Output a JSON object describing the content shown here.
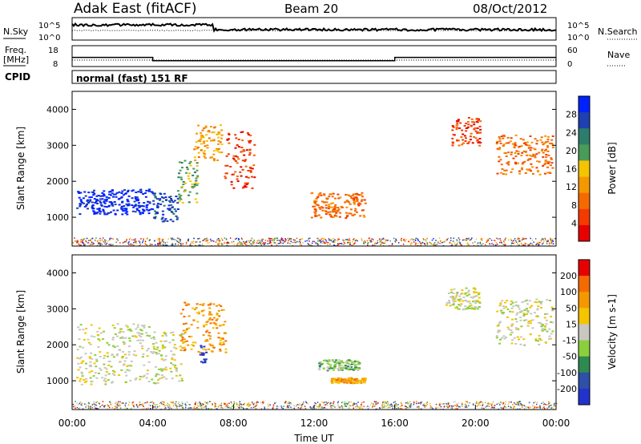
{
  "header": {
    "station": "Adak East (fitACF)",
    "beam": "Beam 20",
    "date": "08/Oct/2012"
  },
  "panel_labels": {
    "nsky": "N.Sky",
    "nsearch": "N.Search",
    "freq": "Freq.",
    "freq_unit": "[MHz]",
    "nave": "Nave",
    "cpid": "CPID",
    "cpid_value": "normal (fast) 151 RF"
  },
  "colors": {
    "power_scale": [
      "#0022ff",
      "#1e40b0",
      "#2d7d6a",
      "#4a9a5a",
      "#f5c400",
      "#f59800",
      "#f56a00",
      "#f53a00",
      "#e80000"
    ],
    "velocity_scale": [
      "#2233cc",
      "#2f4fa8",
      "#2f8a4f",
      "#8ccf3c",
      "#c8c8c0",
      "#f5c400",
      "#f59800",
      "#f56a00",
      "#e80000"
    ]
  },
  "chart_data": [
    {
      "type": "line",
      "panel": "noise",
      "left_ylabel": "N.Sky",
      "right_ylabel": "N.Search",
      "left_ticks": [
        "10^5",
        "10^0"
      ],
      "right_ticks": [
        "10^5",
        "10^0"
      ],
      "x": [
        "00:00",
        "04:00",
        "08:00",
        "12:00",
        "16:00",
        "20:00",
        "00:00"
      ]
    },
    {
      "type": "line",
      "panel": "frequency",
      "left_ylabel": "Freq. [MHz]",
      "right_ylabel": "Nave",
      "left_ticks": [
        "18",
        "8"
      ],
      "right_ticks": [
        "60",
        "0"
      ],
      "series": [
        {
          "name": "Freq.",
          "x_hours": [
            0,
            4,
            4,
            16,
            16,
            24
          ],
          "values": [
            12.4,
            12.4,
            10.8,
            10.8,
            12.4,
            12.4
          ]
        }
      ]
    },
    {
      "type": "heatmap",
      "panel": "power",
      "ylabel": "Slant Range [km]",
      "yticks": [
        "1000",
        "2000",
        "3000",
        "4000"
      ],
      "ylim": [
        200,
        4500
      ],
      "colorbar_label": "Power [dB]",
      "colorbar_ticks": [
        "4",
        "8",
        "12",
        "16",
        "20",
        "24",
        "28"
      ],
      "xlim_hours": [
        0,
        24
      ],
      "regions": [
        {
          "start_h": 0.2,
          "end_h": 4.0,
          "min_km": 1100,
          "max_km": 1800,
          "level": 8
        },
        {
          "start_h": 4.0,
          "end_h": 5.2,
          "min_km": 900,
          "max_km": 1700,
          "level": 7
        },
        {
          "start_h": 5.2,
          "end_h": 6.2,
          "min_km": 1400,
          "max_km": 2600,
          "level": 5
        },
        {
          "start_h": 6.0,
          "end_h": 7.4,
          "min_km": 2600,
          "max_km": 3600,
          "level": 3
        },
        {
          "start_h": 7.5,
          "end_h": 9.0,
          "min_km": 1800,
          "max_km": 3400,
          "level": 1
        },
        {
          "start_h": 11.8,
          "end_h": 14.5,
          "min_km": 1000,
          "max_km": 1700,
          "level": 2
        },
        {
          "start_h": 18.8,
          "end_h": 20.2,
          "min_km": 3000,
          "max_km": 3800,
          "level": 1
        },
        {
          "start_h": 21.0,
          "end_h": 23.8,
          "min_km": 2200,
          "max_km": 3300,
          "level": 2
        }
      ]
    },
    {
      "type": "heatmap",
      "panel": "velocity",
      "ylabel": "Slant Range [km]",
      "yticks": [
        "1000",
        "2000",
        "3000",
        "4000"
      ],
      "ylim": [
        200,
        4500
      ],
      "colorbar_label": "Velocity [m s-1]",
      "colorbar_ticks": [
        "200",
        "100",
        "50",
        "15",
        "-15",
        "-50",
        "-100",
        "-200"
      ],
      "xlabel": "Time UT",
      "xticks": [
        "00:00",
        "04:00",
        "08:00",
        "12:00",
        "16:00",
        "20:00",
        "00:00"
      ],
      "xlim_hours": [
        0,
        24
      ],
      "regions": [
        {
          "start_h": 0.2,
          "end_h": 4.0,
          "min_km": 900,
          "max_km": 2600,
          "level": 4
        },
        {
          "start_h": 4.0,
          "end_h": 5.5,
          "min_km": 900,
          "max_km": 2400,
          "level": 4
        },
        {
          "start_h": 5.3,
          "end_h": 7.6,
          "min_km": 1800,
          "max_km": 3200,
          "level": 6
        },
        {
          "start_h": 6.3,
          "end_h": 6.6,
          "min_km": 1500,
          "max_km": 2000,
          "level": 0
        },
        {
          "start_h": 12.2,
          "end_h": 14.2,
          "min_km": 1300,
          "max_km": 1600,
          "level": 3
        },
        {
          "start_h": 12.8,
          "end_h": 14.5,
          "min_km": 950,
          "max_km": 1100,
          "level": 6
        },
        {
          "start_h": 18.5,
          "end_h": 20.2,
          "min_km": 3000,
          "max_km": 3600,
          "level": 4
        },
        {
          "start_h": 21.0,
          "end_h": 23.8,
          "min_km": 2000,
          "max_km": 3300,
          "level": 4
        }
      ]
    }
  ]
}
